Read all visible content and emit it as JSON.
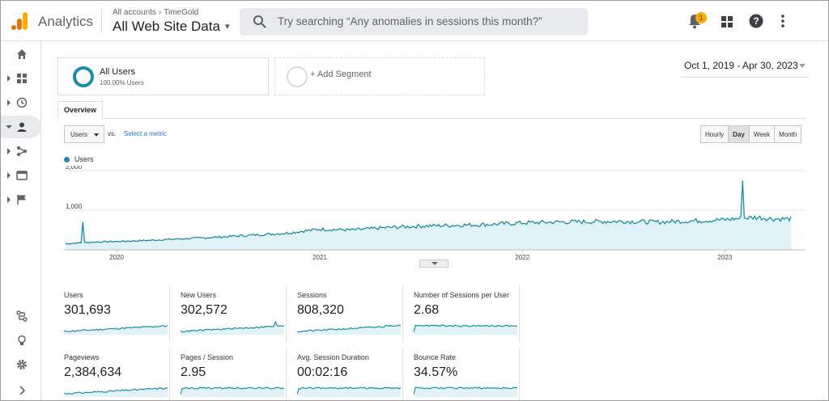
{
  "app": {
    "name": "Analytics",
    "logo": "analytics-bars-logo"
  },
  "account": {
    "crumb_root": "All accounts",
    "crumb_account": "TimeGold",
    "view": "All Web Site Data"
  },
  "search": {
    "placeholder": "Try searching “Any anomalies in sessions this month?”"
  },
  "notifications": {
    "count": "1"
  },
  "header_icons": [
    "bell-icon",
    "apps-grid-icon",
    "help-icon",
    "more-vert-icon"
  ],
  "leftnav": {
    "top": [
      "home-icon",
      "customization-icon",
      "realtime-icon",
      "audience-icon",
      "acquisition-icon",
      "behavior-icon",
      "conversions-icon"
    ],
    "bottom": [
      "attribution-icon",
      "discover-icon",
      "admin-gear-icon",
      "expand-icon"
    ],
    "active": "audience-icon"
  },
  "segments": {
    "primary": {
      "title": "All Users",
      "subtitle": "100.00% Users"
    },
    "add_label": "+ Add Segment"
  },
  "date_range": "Oct 1, 2019 - Apr 30, 2023",
  "tab": "Overview",
  "controls": {
    "metric": "Users",
    "vs_label": "vs.",
    "select_metric": "Select a metric",
    "granularity": [
      "Hourly",
      "Day",
      "Week",
      "Month"
    ],
    "granularity_active": "Day"
  },
  "colors": {
    "accent": "#1e8ca8",
    "fill": "#e1f3f9"
  },
  "chart_data": {
    "type": "area",
    "legend": "Users",
    "x_ticks": [
      "2020",
      "2021",
      "2022",
      "2023"
    ],
    "y_ticks": [
      "1,000",
      "2,000"
    ],
    "ylim": [
      0,
      2000
    ],
    "x": [
      "2019-10",
      "2019-11",
      "2019-12",
      "2020-01",
      "2020-03",
      "2020-05",
      "2020-07",
      "2020-09",
      "2020-11",
      "2020-12",
      "2021-01",
      "2021-03",
      "2021-05",
      "2021-07",
      "2021-09",
      "2021-11",
      "2022-01",
      "2022-03",
      "2022-05",
      "2022-07",
      "2022-09",
      "2022-11",
      "2023-01",
      "2023-02",
      "2023-03",
      "2023-04"
    ],
    "values": [
      150,
      180,
      200,
      210,
      240,
      280,
      320,
      370,
      420,
      470,
      520,
      500,
      560,
      600,
      620,
      640,
      680,
      700,
      710,
      720,
      700,
      730,
      760,
      800,
      820,
      780
    ],
    "spikes": [
      {
        "x": "2019-11",
        "value": 700
      },
      {
        "x": "2023-02",
        "value": 1750
      }
    ]
  },
  "kpis": [
    {
      "label": "Users",
      "value": "301,693"
    },
    {
      "label": "New Users",
      "value": "302,572"
    },
    {
      "label": "Sessions",
      "value": "808,320"
    },
    {
      "label": "Number of Sessions per User",
      "value": "2.68"
    },
    {
      "label": "Pageviews",
      "value": "2,384,634"
    },
    {
      "label": "Pages / Session",
      "value": "2.95"
    },
    {
      "label": "Avg. Session Duration",
      "value": "00:02:16"
    },
    {
      "label": "Bounce Rate",
      "value": "34.57%"
    }
  ]
}
